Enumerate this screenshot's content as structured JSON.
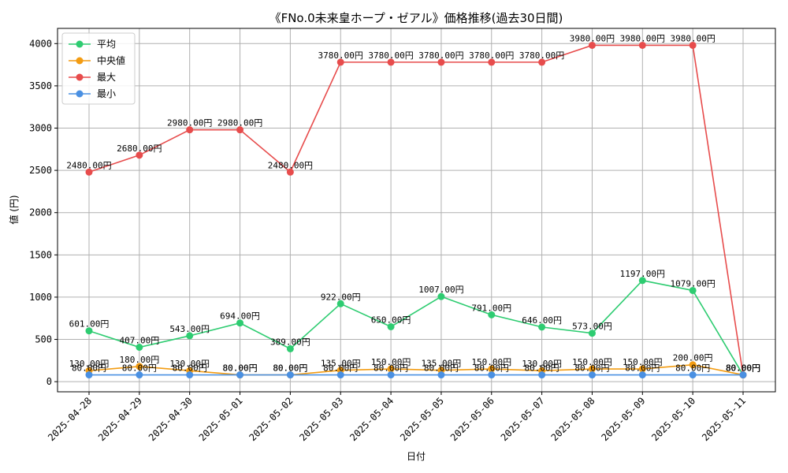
{
  "chart_data": {
    "type": "line",
    "title": "《FNo.0未来皇ホープ・ゼアル》価格推移(過去30日間)",
    "xlabel": "日付",
    "ylabel": "値 (円)",
    "ylim": [
      -120,
      4180
    ],
    "yticks": [
      0,
      500,
      1000,
      1500,
      2000,
      2500,
      3000,
      3500,
      4000
    ],
    "grid": true,
    "legend_position": "top-left",
    "categories": [
      "2025-04-28",
      "2025-04-29",
      "2025-04-30",
      "2025-05-01",
      "2025-05-02",
      "2025-05-03",
      "2025-05-04",
      "2025-05-05",
      "2025-05-06",
      "2025-05-07",
      "2025-05-08",
      "2025-05-09",
      "2025-05-10",
      "2025-05-11"
    ],
    "series": [
      {
        "name": "平均",
        "color": "#2ecc71",
        "values": [
          601,
          407,
          543,
          694,
          389,
          922,
          650,
          1007,
          791,
          646,
          573,
          1197,
          1079,
          80
        ],
        "labels": [
          "601.00円",
          "407.00円",
          "543.00円",
          "694.00円",
          "389.00円",
          "922.00円",
          "650.00円",
          "1007.00円",
          "791.00円",
          "646.00円",
          "573.00円",
          "1197.00円",
          "1079.00円",
          "80.00円"
        ]
      },
      {
        "name": "中央値",
        "color": "#f39c12",
        "values": [
          130,
          180,
          130,
          80,
          80,
          135,
          150,
          135,
          150,
          130,
          150,
          150,
          200,
          80
        ],
        "labels": [
          "130.00円",
          "180.00円",
          "130.00円",
          "80.00円",
          "80.00円",
          "135.00円",
          "150.00円",
          "135.00円",
          "150.00円",
          "130.00円",
          "150.00円",
          "150.00円",
          "200.00円",
          "80.00円"
        ]
      },
      {
        "name": "最大",
        "color": "#e74c4c",
        "values": [
          2480,
          2680,
          2980,
          2980,
          2480,
          3780,
          3780,
          3780,
          3780,
          3780,
          3980,
          3980,
          3980,
          80
        ],
        "labels": [
          "2480.00円",
          "2680.00円",
          "2980.00円",
          "2980.00円",
          "2480.00円",
          "3780.00円",
          "3780.00円",
          "3780.00円",
          "3780.00円",
          "3780.00円",
          "3980.00円",
          "3980.00円",
          "3980.00円",
          "80.00円"
        ]
      },
      {
        "name": "最小",
        "color": "#4a90e2",
        "values": [
          80,
          80,
          80,
          80,
          80,
          80,
          80,
          80,
          80,
          80,
          80,
          80,
          80,
          80
        ],
        "labels": [
          "80.00円",
          "80.00円",
          "80.00円",
          "80.00円",
          "80.00円",
          "80.00円",
          "80.00円",
          "80.00円",
          "80.00円",
          "80.00円",
          "80.00円",
          "80.00円",
          "80.00円",
          "80.00円"
        ]
      }
    ]
  }
}
